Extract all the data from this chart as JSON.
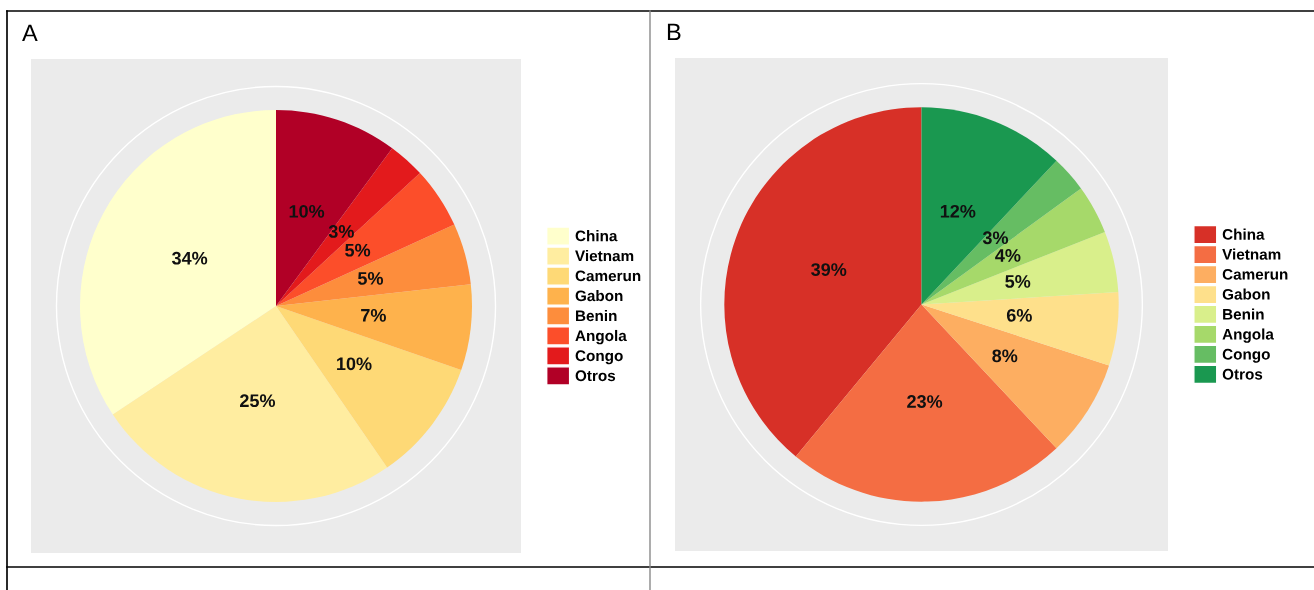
{
  "chart_data": [
    {
      "type": "pie",
      "title": "A",
      "categories": [
        "China",
        "Vietnam",
        "Camerun",
        "Gabon",
        "Benin",
        "Angola",
        "Congo",
        "Otros"
      ],
      "values": [
        34,
        25,
        10,
        7,
        5,
        5,
        3,
        10
      ],
      "colors": [
        "#ffffcc",
        "#ffeda0",
        "#fed976",
        "#feb24c",
        "#fd8d3c",
        "#fc4e2a",
        "#e31a1c",
        "#b10026"
      ],
      "value_labels": [
        "34%",
        "25%",
        "10%",
        "7%",
        "5%",
        "5%",
        "3%",
        "10%"
      ],
      "legend": "right"
    },
    {
      "type": "pie",
      "title": "B",
      "categories": [
        "China",
        "Vietnam",
        "Camerun",
        "Gabon",
        "Benin",
        "Angola",
        "Congo",
        "Otros"
      ],
      "values": [
        39,
        23,
        8,
        6,
        5,
        4,
        3,
        12
      ],
      "colors": [
        "#d73027",
        "#f46d43",
        "#fdae61",
        "#fee08b",
        "#d9ef8b",
        "#a6d96a",
        "#66bd63",
        "#1a9850"
      ],
      "value_labels": [
        "39%",
        "23%",
        "8%",
        "6%",
        "5%",
        "4%",
        "3%",
        "12%"
      ],
      "legend": "right"
    }
  ]
}
